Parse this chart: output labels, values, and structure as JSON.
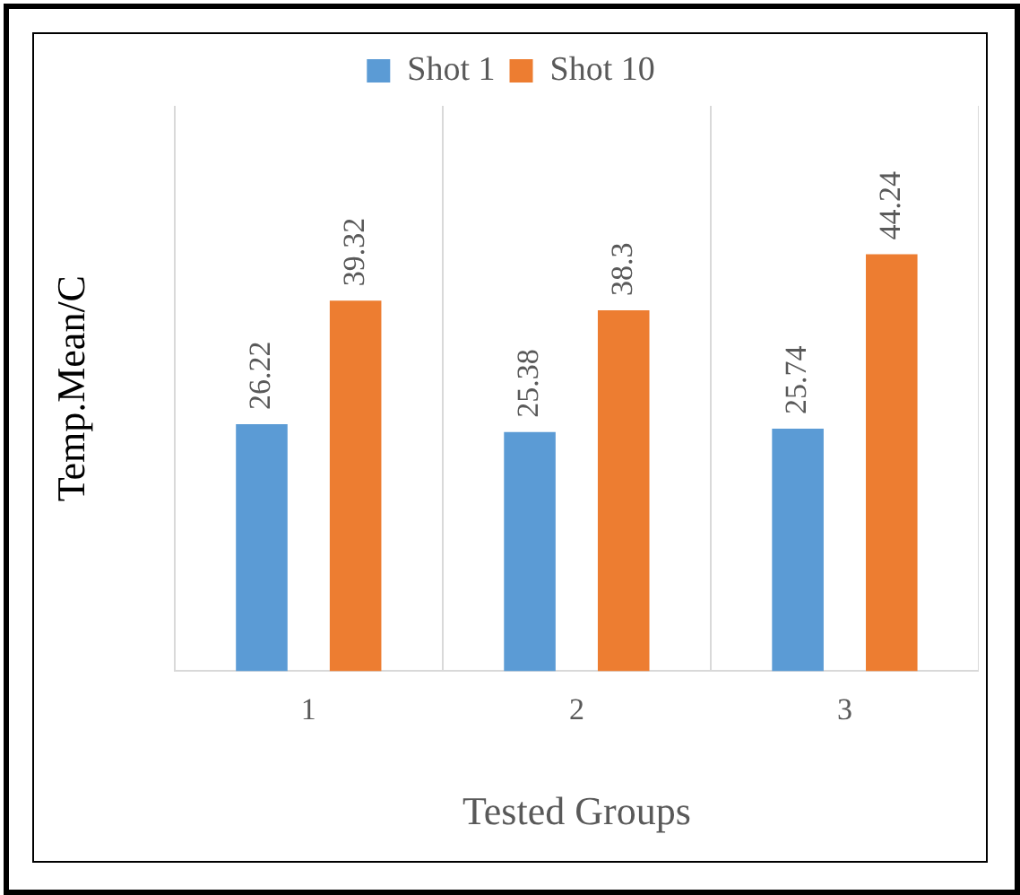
{
  "chart_data": {
    "type": "bar",
    "xlabel": "Tested Groups",
    "ylabel": "Temp.Mean/C",
    "categories": [
      "1",
      "2",
      "3"
    ],
    "series": [
      {
        "name": "Shot 1",
        "color": "#5b9bd5",
        "values": [
          26.22,
          25.38,
          25.74
        ]
      },
      {
        "name": "Shot 10",
        "color": "#ed7d31",
        "values": [
          39.32,
          38.3,
          44.24
        ]
      }
    ],
    "data_labels": true,
    "grid": "x",
    "legend": "top"
  }
}
